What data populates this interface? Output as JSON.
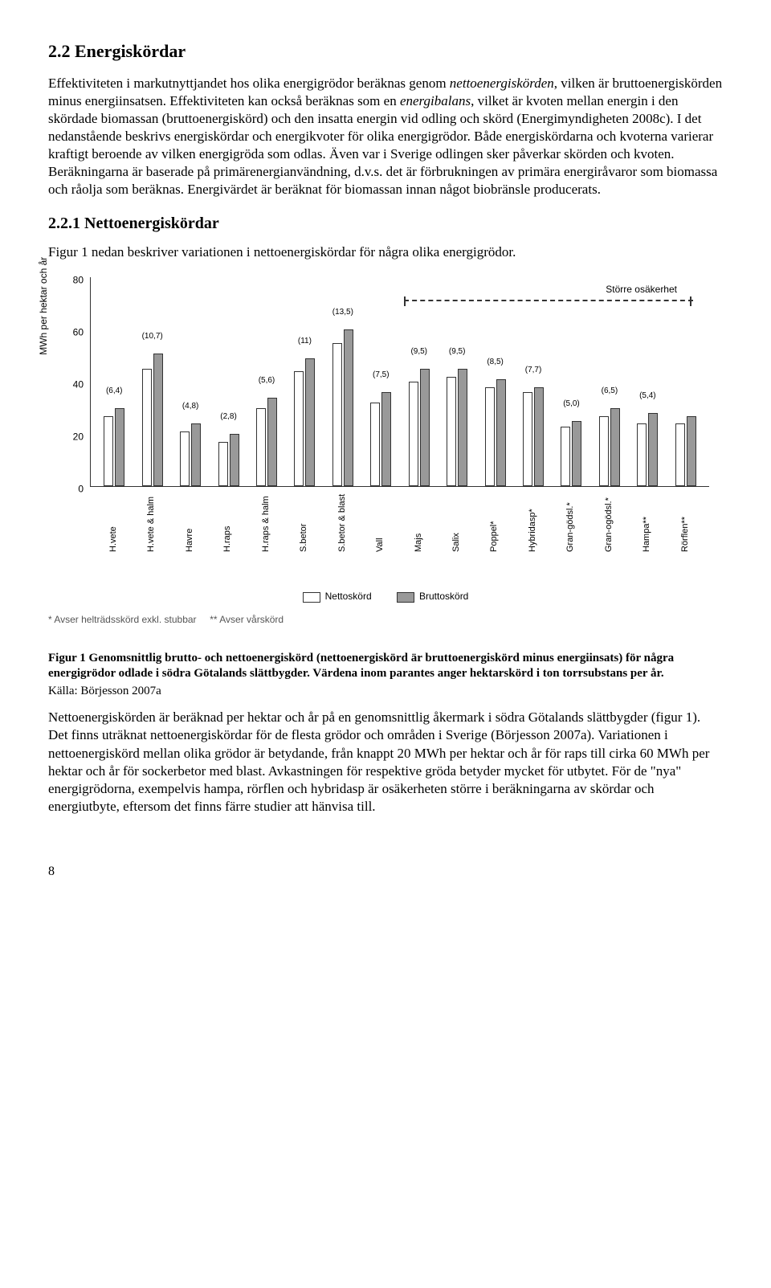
{
  "section": {
    "heading": "2.2 Energiskördar",
    "para1_a": "Effektiviteten i markutnyttjandet hos olika energigrödor beräknas genom ",
    "para1_b": "nettoenergiskörden",
    "para1_c": ", vilken är bruttoenergiskörden minus energiinsatsen. Effektiviteten kan också beräknas som en ",
    "para1_d": "energibalans",
    "para1_e": ", vilket är kvoten mellan energin i den skördade biomassan (bruttoenergiskörd) och den insatta energin vid odling och skörd (Energimyndigheten 2008c). I det nedanstående beskrivs energiskördar och energikvoter för olika energigrödor. Både energiskördarna och kvoterna varierar kraftigt beroende av vilken energigröda som odlas. Även var i Sverige odlingen sker påverkar skörden och kvoten. Beräkningarna är baserade på primärenergianvändning, d.v.s. det är förbrukningen av primära energiråvaror som biomassa och råolja som beräknas. Energivärdet är beräknat för biomassan innan något biobränsle producerats.",
    "subheading": "2.2.1 Nettoenergiskördar",
    "para2": "Figur 1 nedan beskriver variationen i nettoenergiskördar för några olika energigrödor."
  },
  "chart": {
    "ylabel": "MWh per hektar och år",
    "ymax": 80,
    "yticks": [
      0,
      20,
      40,
      60,
      80
    ],
    "uncertainty_label": "Större osäkerhet",
    "categories": [
      {
        "label": "H.vete",
        "val_label": "(6,4)",
        "netto": 27,
        "brutto": 30
      },
      {
        "label": "H.vete & halm",
        "val_label": "(10,7)",
        "netto": 45,
        "brutto": 51
      },
      {
        "label": "Havre",
        "val_label": "(4,8)",
        "netto": 21,
        "brutto": 24
      },
      {
        "label": "H.raps",
        "val_label": "(2,8)",
        "netto": 17,
        "brutto": 20
      },
      {
        "label": "H.raps & halm",
        "val_label": "(5,6)",
        "netto": 30,
        "brutto": 34
      },
      {
        "label": "S.betor",
        "val_label": "(11)",
        "netto": 44,
        "brutto": 49
      },
      {
        "label": "S.betor & blast",
        "val_label": "(13,5)",
        "netto": 55,
        "brutto": 60
      },
      {
        "label": "Vall",
        "val_label": "(7,5)",
        "netto": 32,
        "brutto": 36
      },
      {
        "label": "Majs",
        "val_label": "(9,5)",
        "netto": 40,
        "brutto": 45
      },
      {
        "label": "Salix",
        "val_label": "(9,5)",
        "netto": 42,
        "brutto": 45
      },
      {
        "label": "Poppel*",
        "val_label": "(8,5)",
        "netto": 38,
        "brutto": 41
      },
      {
        "label": "Hybridasp*",
        "val_label": "(7,7)",
        "netto": 36,
        "brutto": 38
      },
      {
        "label": "Gran-gödsl.*",
        "val_label": "(5,0)",
        "netto": 23,
        "brutto": 25
      },
      {
        "label": "Gran-ogödsl.*",
        "val_label": "(6,5)",
        "netto": 27,
        "brutto": 30
      },
      {
        "label": "Hampa**",
        "val_label": "(5,4)",
        "netto": 24,
        "brutto": 28
      },
      {
        "label": "Rörflen**",
        "val_label": "",
        "netto": 24,
        "brutto": 27
      }
    ],
    "legend": {
      "netto": "Nettoskörd",
      "brutto": "Bruttoskörd"
    },
    "note1": "* Avser helträdsskörd exkl. stubbar",
    "note2": "** Avser vårskörd"
  },
  "figure": {
    "caption": "Figur 1 Genomsnittlig brutto- och nettoenergiskörd (nettoenergiskörd är bruttoenergiskörd minus energiinsats) för några energigrödor odlade i södra Götalands slättbygder. Värdena inom parantes anger hektarskörd i ton torrsubstans per år.",
    "source": "Källa: Börjesson 2007a"
  },
  "para3": "Nettoenergiskörden är beräknad per hektar och år på en genomsnittlig åkermark i södra Götalands slättbygder (figur 1). Det finns uträknat nettoenergiskördar för de flesta grödor och områden i Sverige (Börjesson 2007a). Variationen i nettoenergiskörd mellan olika grödor är betydande, från knappt 20 MWh per hektar och år för raps till cirka 60 MWh per hektar och år för sockerbetor med blast. Avkastningen för respektive gröda betyder mycket för utbytet. För de \"nya\" energigrödorna, exempelvis hampa, rörflen och hybridasp är osäkerheten större i beräkningarna av skördar och energiutbyte, eftersom det finns färre studier att hänvisa till.",
  "page_number": "8"
}
